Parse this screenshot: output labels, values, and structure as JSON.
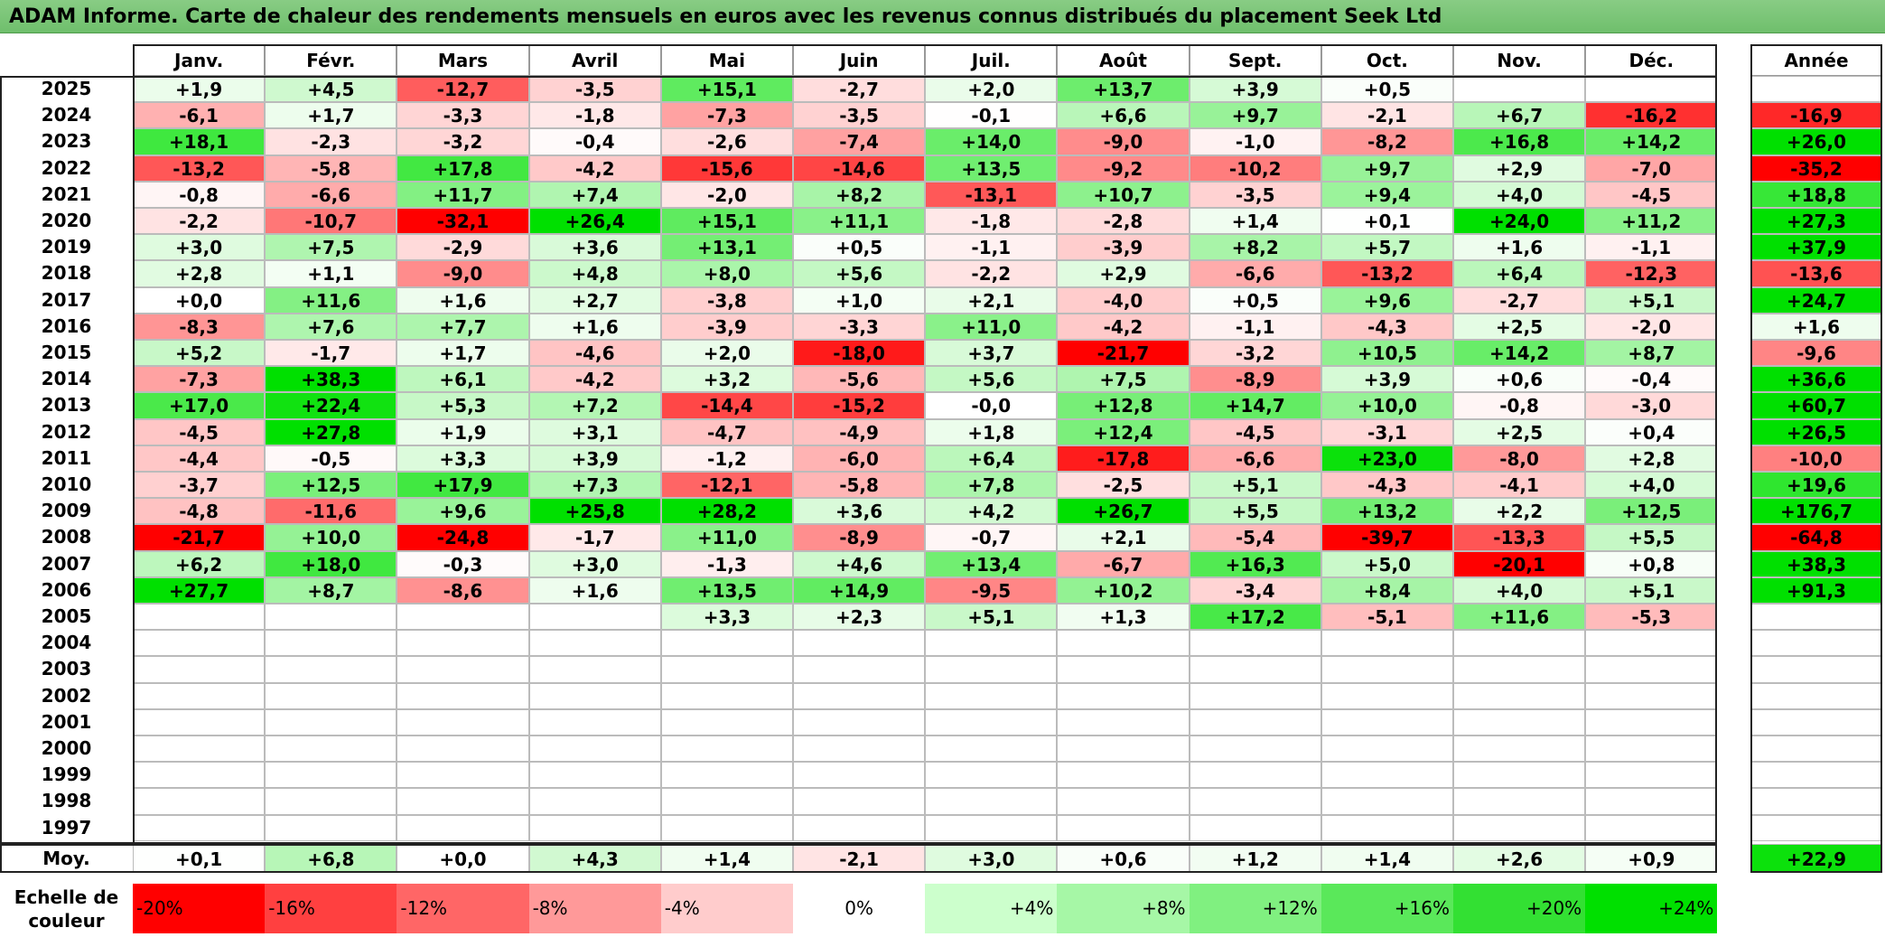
{
  "title": "ADAM Informe. Carte de chaleur des rendements mensuels en euros avec les revenus connus distribués du placement Seek Ltd",
  "chart_data": {
    "type": "heatmap",
    "title": "ADAM Informe. Carte de chaleur des rendements mensuels en euros avec les revenus connus distribués du placement Seek Ltd",
    "months": [
      "Janv.",
      "Févr.",
      "Mars",
      "Avril",
      "Mai",
      "Juin",
      "Juil.",
      "Août",
      "Sept.",
      "Oct.",
      "Nov.",
      "Déc."
    ],
    "annual_label": "Année",
    "avg_label": "Moy.",
    "rows": [
      {
        "year": "2025",
        "values": [
          "+1,9",
          "+4,5",
          "-12,7",
          "-3,5",
          "+15,1",
          "-2,7",
          "+2,0",
          "+13,7",
          "+3,9",
          "+0,5",
          "",
          ""
        ],
        "annual": ""
      },
      {
        "year": "2024",
        "values": [
          "-6,1",
          "+1,7",
          "-3,3",
          "-1,8",
          "-7,3",
          "-3,5",
          "-0,1",
          "+6,6",
          "+9,7",
          "-2,1",
          "+6,7",
          "-16,2"
        ],
        "annual": "-16,9"
      },
      {
        "year": "2023",
        "values": [
          "+18,1",
          "-2,3",
          "-3,2",
          "-0,4",
          "-2,6",
          "-7,4",
          "+14,0",
          "-9,0",
          "-1,0",
          "-8,2",
          "+16,8",
          "+14,2"
        ],
        "annual": "+26,0"
      },
      {
        "year": "2022",
        "values": [
          "-13,2",
          "-5,8",
          "+17,8",
          "-4,2",
          "-15,6",
          "-14,6",
          "+13,5",
          "-9,2",
          "-10,2",
          "+9,7",
          "+2,9",
          "-7,0"
        ],
        "annual": "-35,2"
      },
      {
        "year": "2021",
        "values": [
          "-0,8",
          "-6,6",
          "+11,7",
          "+7,4",
          "-2,0",
          "+8,2",
          "-13,1",
          "+10,7",
          "-3,5",
          "+9,4",
          "+4,0",
          "-4,5"
        ],
        "annual": "+18,8"
      },
      {
        "year": "2020",
        "values": [
          "-2,2",
          "-10,7",
          "-32,1",
          "+26,4",
          "+15,1",
          "+11,1",
          "-1,8",
          "-2,8",
          "+1,4",
          "+0,1",
          "+24,0",
          "+11,2"
        ],
        "annual": "+27,3"
      },
      {
        "year": "2019",
        "values": [
          "+3,0",
          "+7,5",
          "-2,9",
          "+3,6",
          "+13,1",
          "+0,5",
          "-1,1",
          "-3,9",
          "+8,2",
          "+5,7",
          "+1,6",
          "-1,1"
        ],
        "annual": "+37,9"
      },
      {
        "year": "2018",
        "values": [
          "+2,8",
          "+1,1",
          "-9,0",
          "+4,8",
          "+8,0",
          "+5,6",
          "-2,2",
          "+2,9",
          "-6,6",
          "-13,2",
          "+6,4",
          "-12,3"
        ],
        "annual": "-13,6"
      },
      {
        "year": "2017",
        "values": [
          "+0,0",
          "+11,6",
          "+1,6",
          "+2,7",
          "-3,8",
          "+1,0",
          "+2,1",
          "-4,0",
          "+0,5",
          "+9,6",
          "-2,7",
          "+5,1"
        ],
        "annual": "+24,7"
      },
      {
        "year": "2016",
        "values": [
          "-8,3",
          "+7,6",
          "+7,7",
          "+1,6",
          "-3,9",
          "-3,3",
          "+11,0",
          "-4,2",
          "-1,1",
          "-4,3",
          "+2,5",
          "-2,0"
        ],
        "annual": "+1,6"
      },
      {
        "year": "2015",
        "values": [
          "+5,2",
          "-1,7",
          "+1,7",
          "-4,6",
          "+2,0",
          "-18,0",
          "+3,7",
          "-21,7",
          "-3,2",
          "+10,5",
          "+14,2",
          "+8,7"
        ],
        "annual": "-9,6"
      },
      {
        "year": "2014",
        "values": [
          "-7,3",
          "+38,3",
          "+6,1",
          "-4,2",
          "+3,2",
          "-5,6",
          "+5,6",
          "+7,5",
          "-8,9",
          "+3,9",
          "+0,6",
          "-0,4"
        ],
        "annual": "+36,6"
      },
      {
        "year": "2013",
        "values": [
          "+17,0",
          "+22,4",
          "+5,3",
          "+7,2",
          "-14,4",
          "-15,2",
          "-0,0",
          "+12,8",
          "+14,7",
          "+10,0",
          "-0,8",
          "-3,0"
        ],
        "annual": "+60,7"
      },
      {
        "year": "2012",
        "values": [
          "-4,5",
          "+27,8",
          "+1,9",
          "+3,1",
          "-4,7",
          "-4,9",
          "+1,8",
          "+12,4",
          "-4,5",
          "-3,1",
          "+2,5",
          "+0,4"
        ],
        "annual": "+26,5"
      },
      {
        "year": "2011",
        "values": [
          "-4,4",
          "-0,5",
          "+3,3",
          "+3,9",
          "-1,2",
          "-6,0",
          "+6,4",
          "-17,8",
          "-6,6",
          "+23,0",
          "-8,0",
          "+2,8"
        ],
        "annual": "-10,0"
      },
      {
        "year": "2010",
        "values": [
          "-3,7",
          "+12,5",
          "+17,9",
          "+7,3",
          "-12,1",
          "-5,8",
          "+7,8",
          "-2,5",
          "+5,1",
          "-4,3",
          "-4,1",
          "+4,0"
        ],
        "annual": "+19,6"
      },
      {
        "year": "2009",
        "values": [
          "-4,8",
          "-11,6",
          "+9,6",
          "+25,8",
          "+28,2",
          "+3,6",
          "+4,2",
          "+26,7",
          "+5,5",
          "+13,2",
          "+2,2",
          "+12,5"
        ],
        "annual": "+176,7"
      },
      {
        "year": "2008",
        "values": [
          "-21,7",
          "+10,0",
          "-24,8",
          "-1,7",
          "+11,0",
          "-8,9",
          "-0,7",
          "+2,1",
          "-5,4",
          "-39,7",
          "-13,3",
          "+5,5"
        ],
        "annual": "-64,8"
      },
      {
        "year": "2007",
        "values": [
          "+6,2",
          "+18,0",
          "-0,3",
          "+3,0",
          "-1,3",
          "+4,6",
          "+13,4",
          "-6,7",
          "+16,3",
          "+5,0",
          "-20,1",
          "+0,8"
        ],
        "annual": "+38,3"
      },
      {
        "year": "2006",
        "values": [
          "+27,7",
          "+8,7",
          "-8,6",
          "+1,6",
          "+13,5",
          "+14,9",
          "-9,5",
          "+10,2",
          "-3,4",
          "+8,4",
          "+4,0",
          "+5,1"
        ],
        "annual": "+91,3"
      },
      {
        "year": "2005",
        "values": [
          "",
          "",
          "",
          "",
          "+3,3",
          "+2,3",
          "+5,1",
          "+1,3",
          "+17,2",
          "-5,1",
          "+11,6",
          "-5,3"
        ],
        "annual": ""
      },
      {
        "year": "2004",
        "values": [
          "",
          "",
          "",
          "",
          "",
          "",
          "",
          "",
          "",
          "",
          "",
          ""
        ],
        "annual": ""
      },
      {
        "year": "2003",
        "values": [
          "",
          "",
          "",
          "",
          "",
          "",
          "",
          "",
          "",
          "",
          "",
          ""
        ],
        "annual": ""
      },
      {
        "year": "2002",
        "values": [
          "",
          "",
          "",
          "",
          "",
          "",
          "",
          "",
          "",
          "",
          "",
          ""
        ],
        "annual": ""
      },
      {
        "year": "2001",
        "values": [
          "",
          "",
          "",
          "",
          "",
          "",
          "",
          "",
          "",
          "",
          "",
          ""
        ],
        "annual": ""
      },
      {
        "year": "2000",
        "values": [
          "",
          "",
          "",
          "",
          "",
          "",
          "",
          "",
          "",
          "",
          "",
          ""
        ],
        "annual": ""
      },
      {
        "year": "1999",
        "values": [
          "",
          "",
          "",
          "",
          "",
          "",
          "",
          "",
          "",
          "",
          "",
          ""
        ],
        "annual": ""
      },
      {
        "year": "1998",
        "values": [
          "",
          "",
          "",
          "",
          "",
          "",
          "",
          "",
          "",
          "",
          "",
          ""
        ],
        "annual": ""
      },
      {
        "year": "1997",
        "values": [
          "",
          "",
          "",
          "",
          "",
          "",
          "",
          "",
          "",
          "",
          "",
          ""
        ],
        "annual": ""
      }
    ],
    "average": {
      "values": [
        "+0,1",
        "+6,8",
        "+0,0",
        "+4,3",
        "+1,4",
        "-2,1",
        "+3,0",
        "+0,6",
        "+1,2",
        "+1,4",
        "+2,6",
        "+0,9"
      ],
      "annual": "+22,9"
    },
    "color_scale": {
      "label": "Echelle de couleur",
      "stops": [
        {
          "label": "-20%",
          "color": "#ff0000"
        },
        {
          "label": "-16%",
          "color": "#ff4040"
        },
        {
          "label": "-12%",
          "color": "#ff6666"
        },
        {
          "label": "-8%",
          "color": "#ff9999"
        },
        {
          "label": "-4%",
          "color": "#ffcccc"
        },
        {
          "label": "0%",
          "color": "#ffffff"
        },
        {
          "label": "+4%",
          "color": "#ccffcc"
        },
        {
          "label": "+8%",
          "color": "#a6f7a6"
        },
        {
          "label": "+12%",
          "color": "#80f080"
        },
        {
          "label": "+16%",
          "color": "#5ae85a"
        },
        {
          "label": "+20%",
          "color": "#33e033"
        },
        {
          "label": "+24%",
          "color": "#00e000"
        }
      ]
    }
  }
}
